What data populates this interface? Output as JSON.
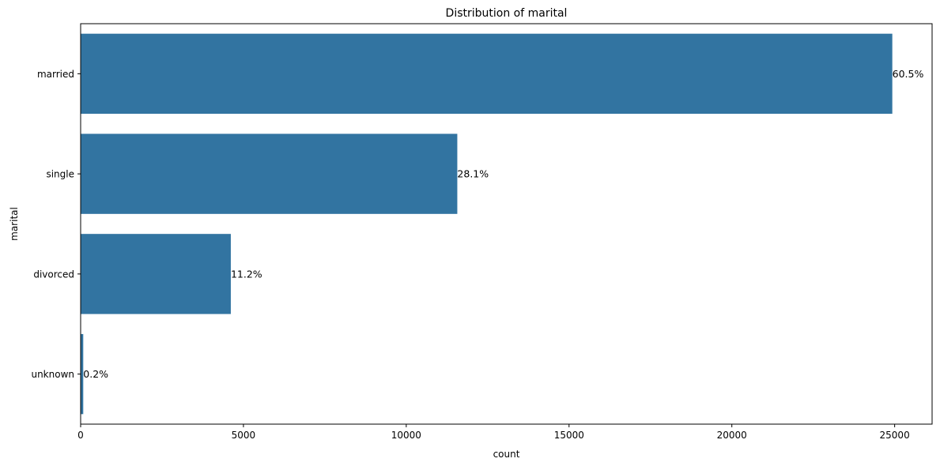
{
  "chart_data": {
    "type": "bar",
    "orientation": "horizontal",
    "title": "Distribution of marital",
    "xlabel": "count",
    "ylabel": "marital",
    "categories": [
      "married",
      "single",
      "divorced",
      "unknown"
    ],
    "values": [
      24928,
      11568,
      4612,
      80
    ],
    "data_labels": [
      "60.5%",
      "28.1%",
      "11.2%",
      "0.2%"
    ],
    "xlim": [
      0,
      26150
    ],
    "xticks": [
      0,
      5000,
      10000,
      15000,
      20000,
      25000
    ],
    "xtick_labels": [
      "0",
      "5000",
      "10000",
      "15000",
      "20000",
      "25000"
    ],
    "bar_color": "#3274a1",
    "grid": false,
    "legend": "none"
  }
}
